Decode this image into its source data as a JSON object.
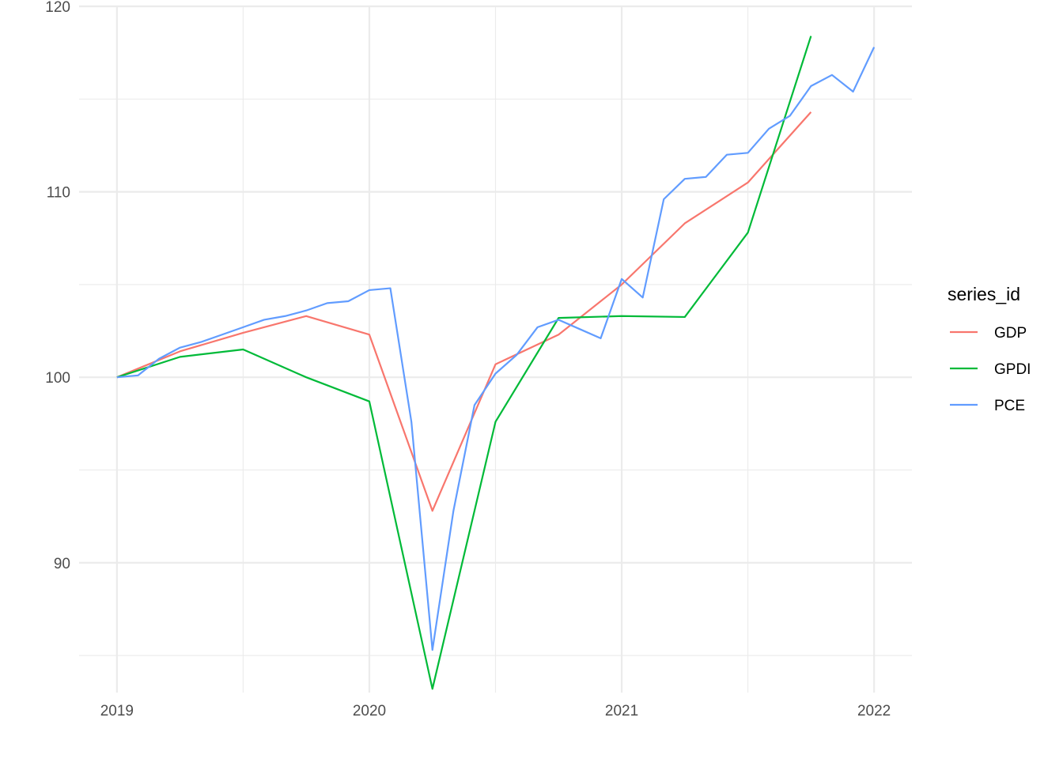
{
  "chart_data": {
    "type": "line",
    "title": "",
    "xlabel": "",
    "ylabel": "",
    "xlim": [
      2018.85,
      2022.15
    ],
    "ylim": [
      83.0,
      120.0
    ],
    "x_ticks": [
      {
        "value": 2019,
        "label": "2019"
      },
      {
        "value": 2020,
        "label": "2020"
      },
      {
        "value": 2021,
        "label": "2021"
      },
      {
        "value": 2022,
        "label": "2022"
      }
    ],
    "x_minor_ticks": [
      2019.5,
      2020.5,
      2021.5
    ],
    "y_ticks": [
      {
        "value": 90,
        "label": "90"
      },
      {
        "value": 100,
        "label": "100"
      },
      {
        "value": 110,
        "label": "110"
      },
      {
        "value": 120,
        "label": "120"
      }
    ],
    "y_minor_ticks": [
      85,
      95,
      105,
      115
    ],
    "grid": true,
    "legend": {
      "title": "series_id",
      "position": "right"
    },
    "series": [
      {
        "name": "GDP",
        "color": "#F8766D",
        "x": [
          2019.0,
          2019.25,
          2019.5,
          2019.75,
          2020.0,
          2020.25,
          2020.5,
          2020.75,
          2021.0,
          2021.25,
          2021.5,
          2021.75
        ],
        "y": [
          100.0,
          101.4,
          102.4,
          103.3,
          102.3,
          92.8,
          100.7,
          102.3,
          105.0,
          108.3,
          110.5,
          114.3
        ]
      },
      {
        "name": "GPDI",
        "color": "#00BA38",
        "x": [
          2019.0,
          2019.25,
          2019.5,
          2019.75,
          2020.0,
          2020.25,
          2020.5,
          2020.75,
          2021.0,
          2021.25,
          2021.5,
          2021.75
        ],
        "y": [
          100.0,
          101.1,
          101.5,
          100.0,
          98.7,
          83.2,
          97.6,
          103.2,
          103.3,
          103.25,
          107.8,
          118.4
        ]
      },
      {
        "name": "PCE",
        "color": "#619CFF",
        "x": [
          2019.0,
          2019.0833,
          2019.1667,
          2019.25,
          2019.3333,
          2019.4167,
          2019.5,
          2019.5833,
          2019.6667,
          2019.75,
          2019.8333,
          2019.9167,
          2020.0,
          2020.0833,
          2020.1667,
          2020.25,
          2020.3333,
          2020.4167,
          2020.5,
          2020.5833,
          2020.6667,
          2020.75,
          2020.8333,
          2020.9167,
          2021.0,
          2021.0833,
          2021.1667,
          2021.25,
          2021.3333,
          2021.4167,
          2021.5,
          2021.5833,
          2021.6667,
          2021.75,
          2021.8333,
          2021.9167,
          2022.0
        ],
        "y": [
          100.0,
          100.1,
          101.0,
          101.6,
          101.9,
          102.3,
          102.7,
          103.1,
          103.3,
          103.6,
          104.0,
          104.1,
          104.7,
          104.8,
          97.6,
          85.3,
          92.8,
          98.5,
          100.2,
          101.2,
          102.7,
          103.1,
          102.6,
          102.1,
          105.3,
          104.3,
          109.6,
          110.7,
          110.8,
          112.0,
          112.1,
          113.4,
          114.1,
          115.7,
          116.3,
          115.4,
          117.8
        ]
      }
    ]
  }
}
